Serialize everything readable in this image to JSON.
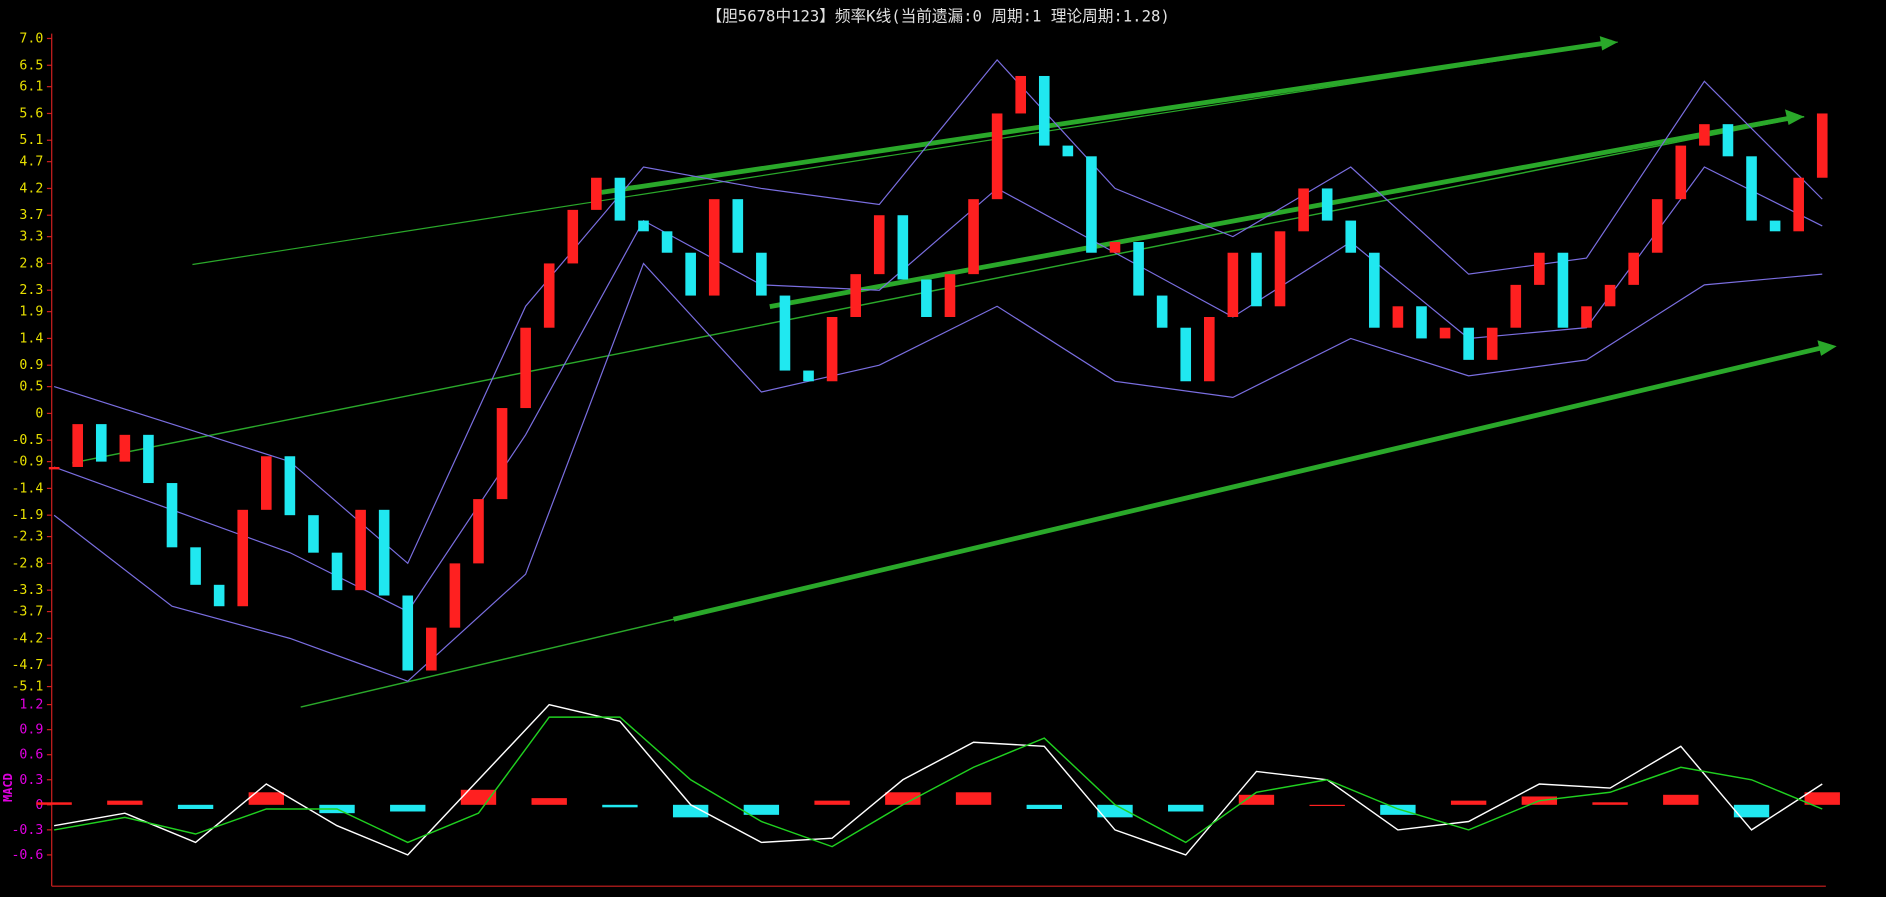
{
  "chart_data": [
    {
      "type": "candlestick",
      "title": "【胆5678中123】频率K线(当前遗漏:0 周期:1 理论周期:1.28)",
      "values": [
        -1.0,
        -0.2,
        -0.9,
        -0.4,
        -1.3,
        -2.5,
        -3.2,
        -3.6,
        -1.8,
        -0.8,
        -1.9,
        -2.6,
        -3.3,
        -1.8,
        -3.4,
        -4.8,
        -4.0,
        -2.8,
        -1.6,
        0.1,
        1.6,
        2.8,
        3.8,
        4.4,
        3.6,
        3.4,
        3.0,
        2.2,
        4.0,
        3.0,
        2.2,
        0.8,
        0.6,
        1.8,
        2.6,
        3.7,
        2.5,
        1.8,
        2.6,
        4.0,
        5.6,
        6.3,
        5.0,
        4.8,
        3.0,
        3.2,
        2.2,
        1.6,
        0.6,
        1.8,
        3.0,
        2.0,
        3.4,
        4.2,
        3.6,
        3.0,
        1.6,
        2.0,
        1.4,
        1.6,
        1.0,
        1.6,
        2.4,
        3.0,
        1.6,
        2.0,
        2.4,
        3.0,
        4.0,
        5.0,
        5.4,
        4.8,
        3.6,
        3.4,
        4.4,
        5.6
      ],
      "up_color": "#ff2020",
      "down_color": "#20e8f0",
      "bands": [
        {
          "color": "#7a6ee0",
          "values": [
            0.5,
            -0.2,
            -0.9,
            -2.8,
            2.0,
            4.6,
            4.2,
            3.9,
            6.6,
            4.2,
            3.3,
            4.6,
            2.6,
            2.9,
            6.2,
            4.0
          ]
        },
        {
          "color": "#7a6ee0",
          "values": [
            -1.0,
            -1.8,
            -2.6,
            -3.7,
            -0.4,
            3.6,
            2.4,
            2.3,
            4.2,
            3.0,
            1.8,
            3.2,
            1.4,
            1.6,
            4.6,
            3.5
          ]
        },
        {
          "color": "#7a6ee0",
          "values": [
            -1.9,
            -3.6,
            -4.2,
            -5.0,
            -3.0,
            2.8,
            0.4,
            0.9,
            2.0,
            0.6,
            0.3,
            1.4,
            0.7,
            1.0,
            2.4,
            2.6
          ]
        }
      ],
      "ylim": [
        -5.1,
        7.0
      ],
      "yticks": [
        {
          "value": 7,
          "label": "7.0"
        },
        6.5,
        6.1,
        5.6,
        5.1,
        4.7,
        4.2,
        3.7,
        3.3,
        2.8,
        2.3,
        1.9,
        1.4,
        0.9,
        0.5,
        0,
        -0.5,
        -0.9,
        -1.4,
        -1.9,
        -2.3,
        -2.8,
        -3.3,
        -3.7,
        -4.2,
        -4.7,
        -5.1
      ],
      "tick_color": "#e8e000"
    },
    {
      "type": "macd",
      "ylabel": "MACD",
      "series": [
        {
          "color": "#ffffff",
          "values": [
            -0.25,
            -0.1,
            -0.45,
            0.25,
            -0.25,
            -0.6,
            0.3,
            1.2,
            1.0,
            0.0,
            -0.45,
            -0.4,
            0.3,
            0.75,
            0.7,
            -0.3,
            -0.6,
            0.4,
            0.3,
            -0.3,
            -0.2,
            0.25,
            0.2,
            0.7,
            -0.3,
            0.25
          ]
        },
        {
          "color": "#20d020",
          "values": [
            -0.3,
            -0.15,
            -0.35,
            -0.05,
            -0.05,
            -0.45,
            -0.1,
            1.05,
            1.05,
            0.3,
            -0.2,
            -0.5,
            0.0,
            0.45,
            0.8,
            0.0,
            -0.45,
            0.15,
            0.3,
            -0.05,
            -0.3,
            0.05,
            0.15,
            0.45,
            0.3,
            -0.05
          ]
        }
      ],
      "histogram": [
        0.03,
        0.05,
        -0.05,
        0.15,
        -0.1,
        -0.08,
        0.18,
        0.08,
        -0.03,
        -0.15,
        -0.12,
        0.05,
        0.15,
        0.15,
        -0.05,
        -0.15,
        -0.08,
        0.12,
        0.0,
        -0.12,
        0.05,
        0.1,
        0.03,
        0.12,
        -0.15,
        0.15
      ],
      "up_color": "#ff2020",
      "down_color": "#20e8f0",
      "ylim": [
        -0.6,
        1.2
      ],
      "yticks": [
        1.2,
        0.9,
        0.6,
        0.3,
        0,
        -0.3,
        -0.6
      ],
      "tick_color": "#e000e0"
    }
  ]
}
